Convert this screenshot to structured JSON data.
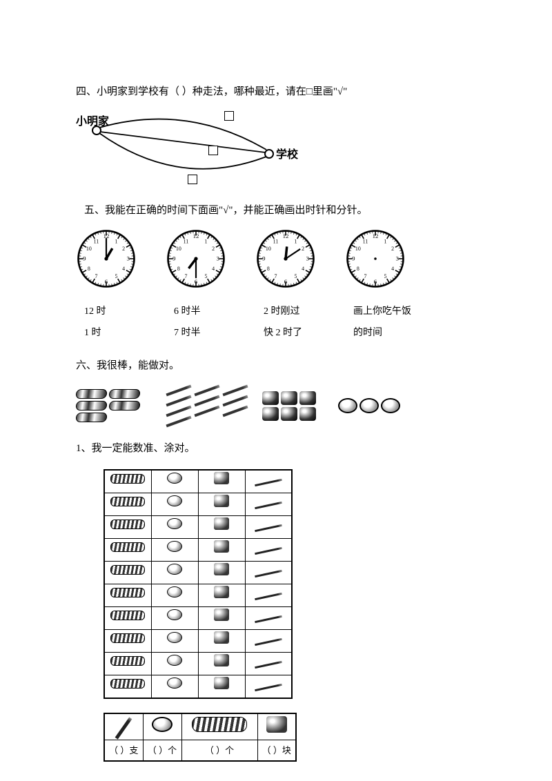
{
  "q4": {
    "title": "四、小明家到学校有（  ）种走法，哪种最近，请在□里画\"√\"",
    "home_label": "小明家",
    "school_label": "学校"
  },
  "q5": {
    "title": "五、我能在正确的时间下面画\"√\"，并能正确画出时针和分针。",
    "clocks": [
      {
        "hour": 1,
        "minute": 0,
        "has_hands": true
      },
      {
        "hour": 7,
        "minute": 30,
        "has_hands": true
      },
      {
        "hour": 12,
        "minute": 8,
        "has_hands": true
      },
      {
        "hour": 0,
        "minute": 0,
        "has_hands": false
      }
    ],
    "labels": [
      {
        "line1": "12 时",
        "line2": "1 时"
      },
      {
        "line1": "6 时半",
        "line2": "7 时半"
      },
      {
        "line1": "2 时刚过",
        "line2": "快 2 时了"
      },
      {
        "line1": "画上你吃午饭",
        "line2": "的时间"
      }
    ]
  },
  "q6": {
    "title": "六、我很棒，能做对。",
    "sub1": "1、我一定能数准、涂对。",
    "items": {
      "pencases": 5,
      "pencils": 10,
      "sharpeners": 6,
      "erasers": 3
    },
    "picto_rows": 10,
    "answer_labels": [
      "（  ）支",
      "（  ）个",
      "（  ）个",
      "（  ）块"
    ]
  },
  "colors": {
    "text": "#000000",
    "bg": "#ffffff",
    "line": "#000000"
  }
}
